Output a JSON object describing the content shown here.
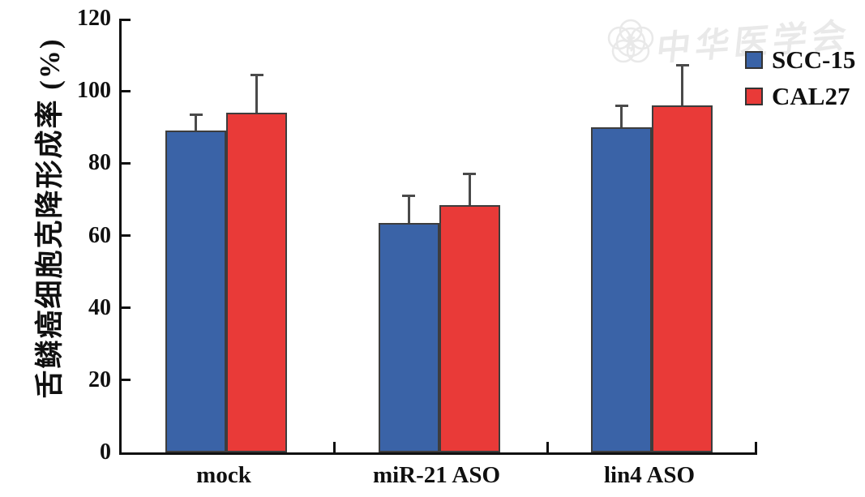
{
  "watermark": {
    "text": "中华医学会",
    "color": "#e9e9e9"
  },
  "legend": {
    "items": [
      {
        "label": "SCC-15",
        "color": "#3a63a7"
      },
      {
        "label": "CAL27",
        "color": "#e93a38"
      }
    ]
  },
  "axis": {
    "line_color": "#101010",
    "error_bar_color": "#4a4a4a",
    "bar_border_color": "#3d3d3d"
  },
  "chart_data": {
    "type": "bar",
    "title": "",
    "xlabel": "",
    "ylabel": "舌鳞癌细胞克降形成率 (%)",
    "categories": [
      "mock",
      "miR-21 ASO",
      "lin4 ASO"
    ],
    "series": [
      {
        "name": "SCC-15",
        "color": "#3a63a7",
        "values": [
          89,
          63.5,
          90
        ],
        "errors": [
          4.5,
          7.5,
          6
        ]
      },
      {
        "name": "CAL27",
        "color": "#e93a38",
        "values": [
          94,
          68.5,
          96
        ],
        "errors": [
          10.5,
          8.5,
          11
        ]
      }
    ],
    "ylim": [
      0,
      120
    ],
    "yticks": [
      0,
      20,
      40,
      60,
      80,
      100,
      120
    ],
    "grid": false,
    "legend_position": "top-right",
    "error_bars": "upper"
  }
}
